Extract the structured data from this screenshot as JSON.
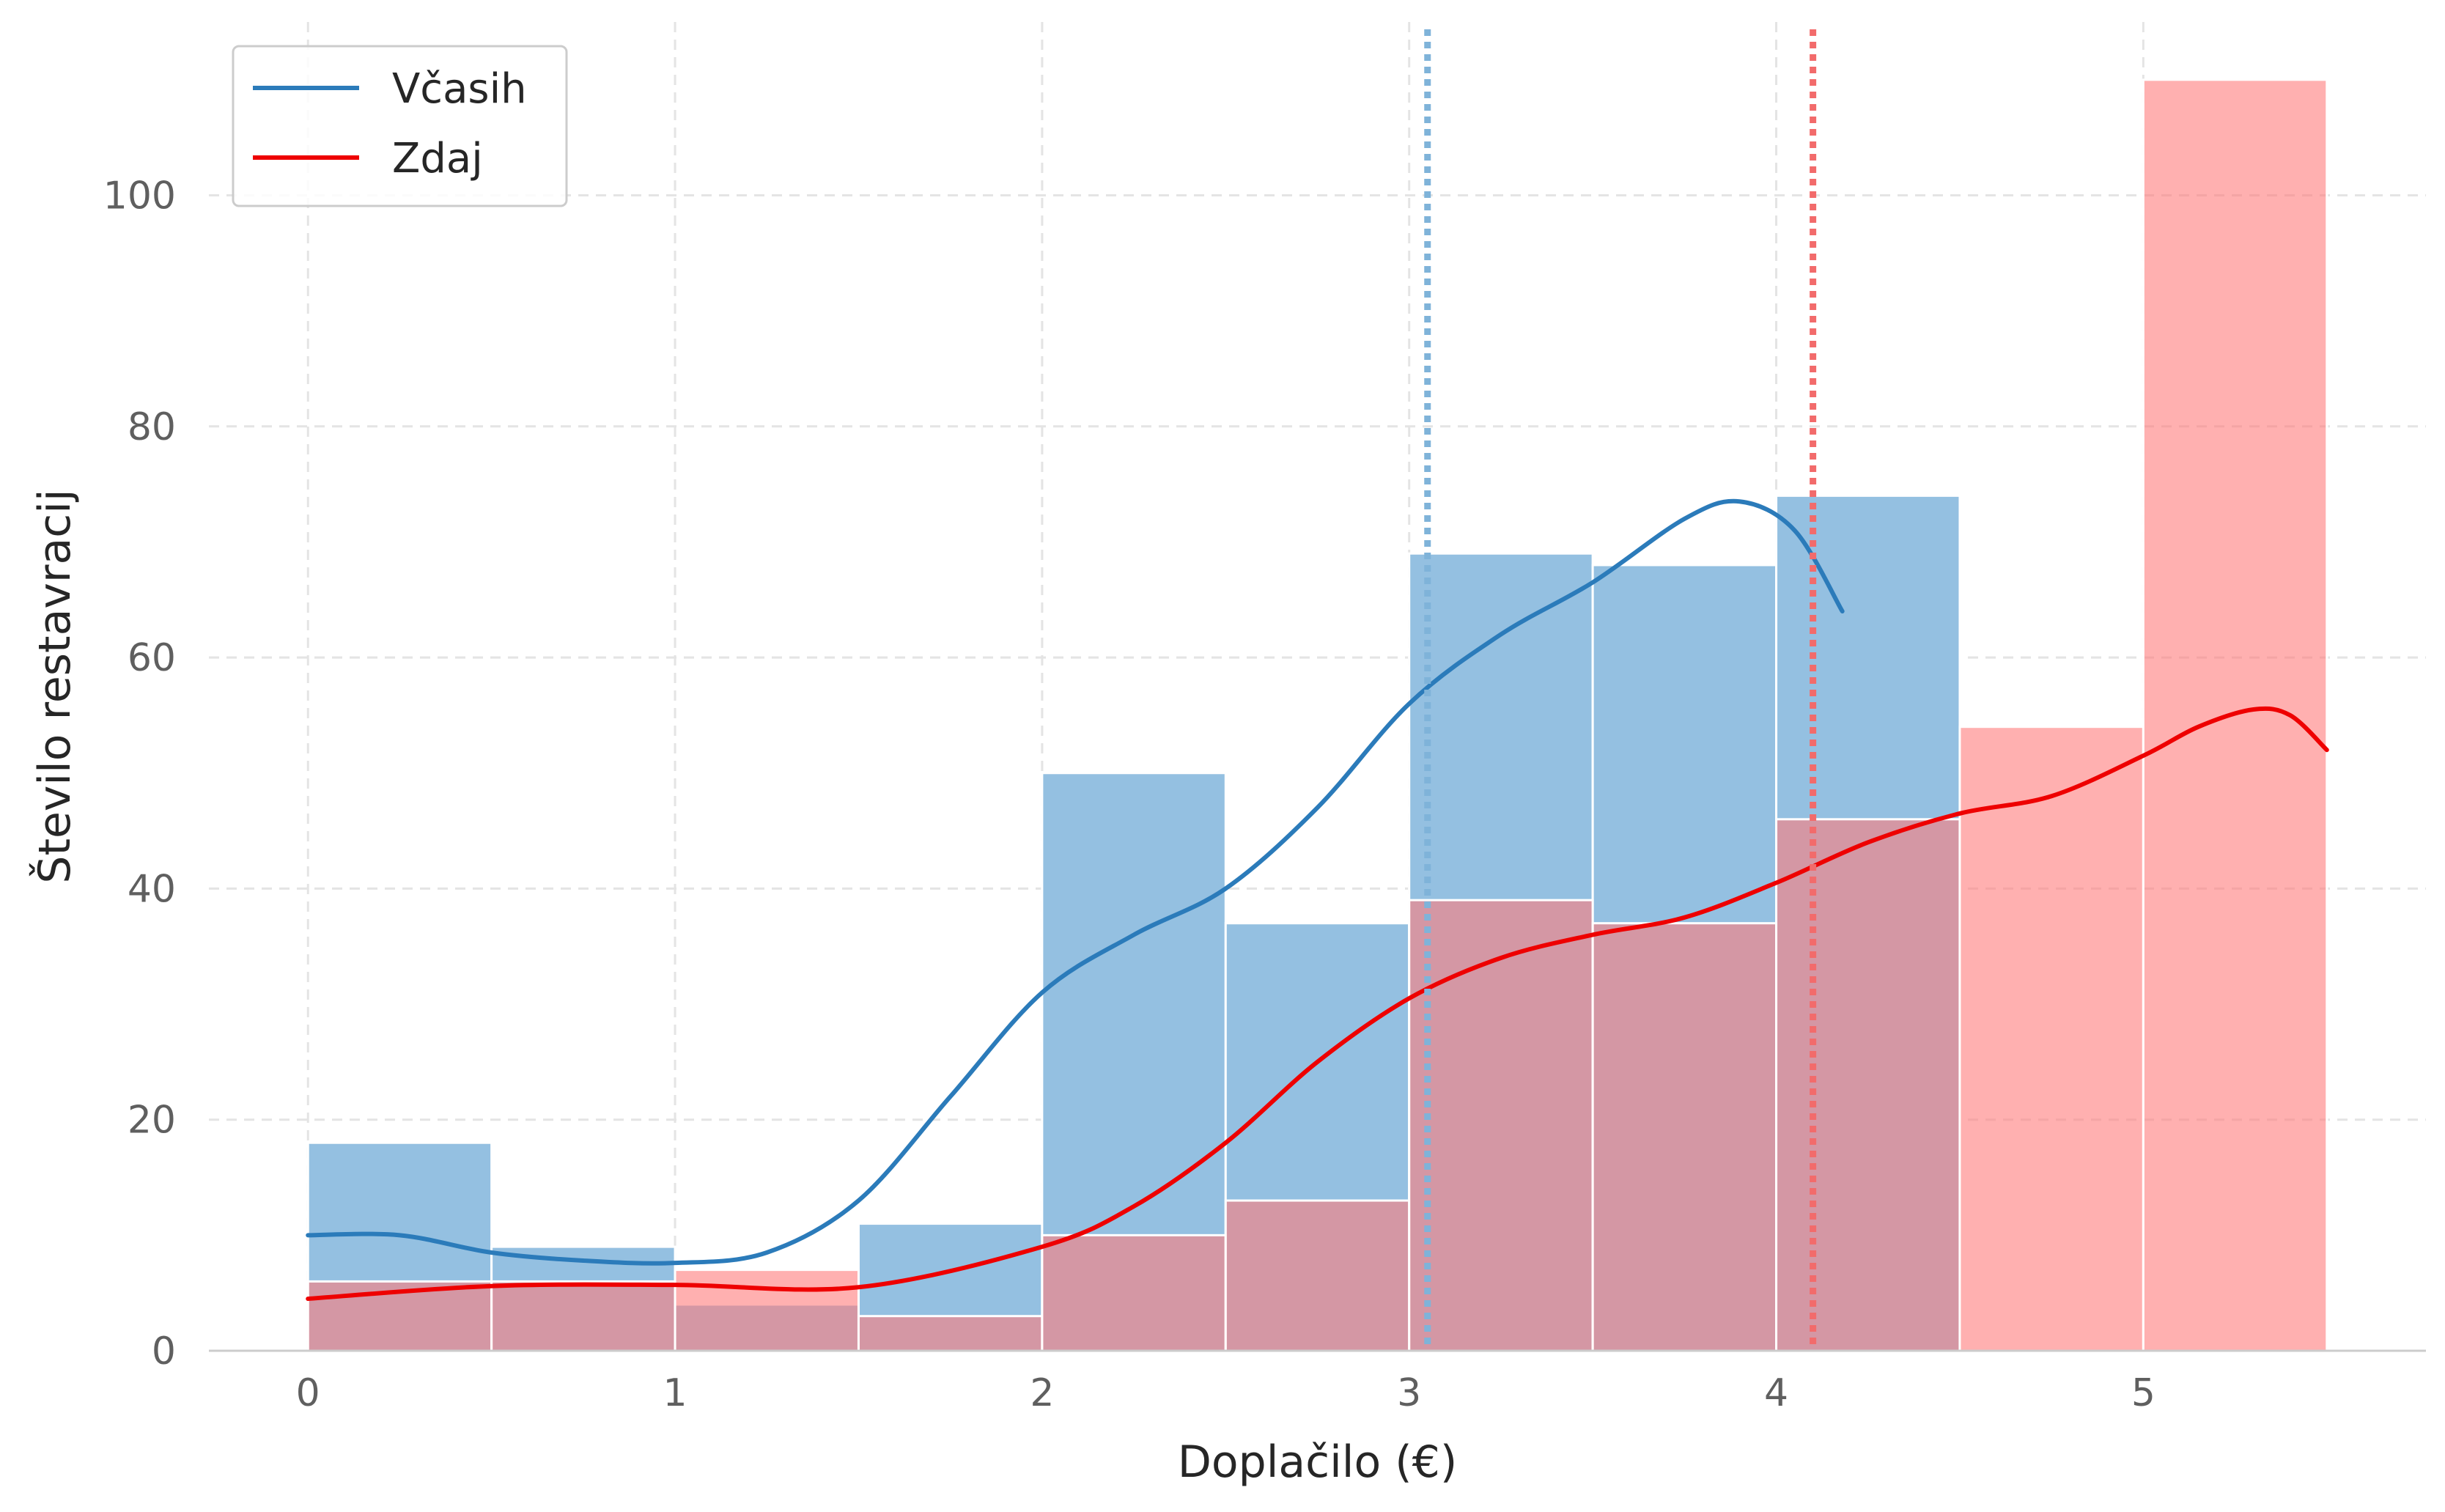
{
  "chart_data": {
    "type": "bar",
    "xlabel": "Doplačilo (€)",
    "ylabel": "Število restavracij",
    "xlim": [
      -0.27,
      5.77
    ],
    "ylim": [
      0,
      115
    ],
    "xticks": [
      0,
      1,
      2,
      3,
      4,
      5
    ],
    "yticks": [
      0,
      20,
      40,
      60,
      80,
      100
    ],
    "grid": true,
    "legend_position": "top-left",
    "bin_edges": [
      0,
      0.5,
      1,
      1.5,
      2,
      2.5,
      3,
      3.5,
      4,
      4.5,
      5,
      5.5
    ],
    "series": [
      {
        "name": "Včasih",
        "color": "#2b7bba",
        "bar_color": "#94c0e1",
        "counts": [
          18,
          9,
          4,
          11,
          50,
          37,
          69,
          68,
          74,
          0,
          0
        ],
        "kde": {
          "x": [
            0,
            0.25,
            0.5,
            0.75,
            1,
            1.25,
            1.5,
            1.75,
            2,
            2.25,
            2.5,
            2.75,
            3,
            3.25,
            3.5,
            3.75,
            3.9,
            4.05,
            4.18
          ],
          "y": [
            10,
            10,
            8.5,
            7.8,
            7.6,
            8.5,
            13,
            22,
            31,
            36,
            40,
            47,
            56,
            62,
            66.5,
            72,
            73.5,
            71,
            64
          ]
        },
        "mean": 3.05
      },
      {
        "name": "Zdaj",
        "color": "#ee0000",
        "bar_color": "#ff7b7b",
        "counts": [
          6,
          6,
          7,
          3,
          10,
          13,
          39,
          37,
          46,
          54,
          110
        ],
        "kde": {
          "x": [
            0,
            0.5,
            1,
            1.5,
            2,
            2.25,
            2.5,
            2.75,
            3,
            3.25,
            3.5,
            3.75,
            4,
            4.25,
            4.5,
            4.75,
            5,
            5.15,
            5.3,
            5.4,
            5.5
          ],
          "y": [
            4.5,
            5.6,
            5.7,
            5.5,
            9,
            12.5,
            18,
            25,
            30.5,
            34,
            36,
            37.5,
            40.5,
            44,
            46.5,
            48,
            51.5,
            54,
            55.5,
            55,
            52
          ]
        },
        "mean": 4.1
      }
    ]
  }
}
